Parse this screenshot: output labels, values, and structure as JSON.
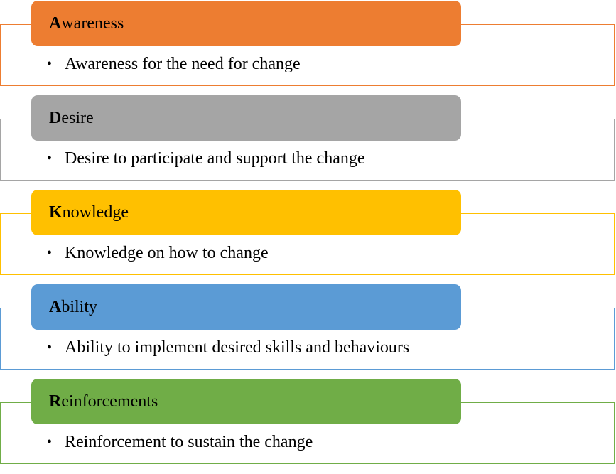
{
  "stages": [
    {
      "initial": "A",
      "rest": "wareness",
      "description": "Awareness for the need for change",
      "color": "#ED7D31",
      "border_color": "#ED7D31"
    },
    {
      "initial": "D",
      "rest": "esire",
      "description": "Desire to participate and support the change",
      "color": "#A5A5A5",
      "border_color": "#A5A5A5"
    },
    {
      "initial": "K",
      "rest": "nowledge",
      "description": "Knowledge on how to change",
      "color": "#FFC000",
      "border_color": "#FFC000"
    },
    {
      "initial": "A",
      "rest": "bility",
      "description": "Ability to implement desired skills and behaviours",
      "color": "#5B9BD5",
      "border_color": "#5B9BD5"
    },
    {
      "initial": "R",
      "rest": "einforcements",
      "description": "Reinforcement to sustain the change",
      "color": "#70AD47",
      "border_color": "#70AD47"
    }
  ],
  "bullet_char": "•"
}
